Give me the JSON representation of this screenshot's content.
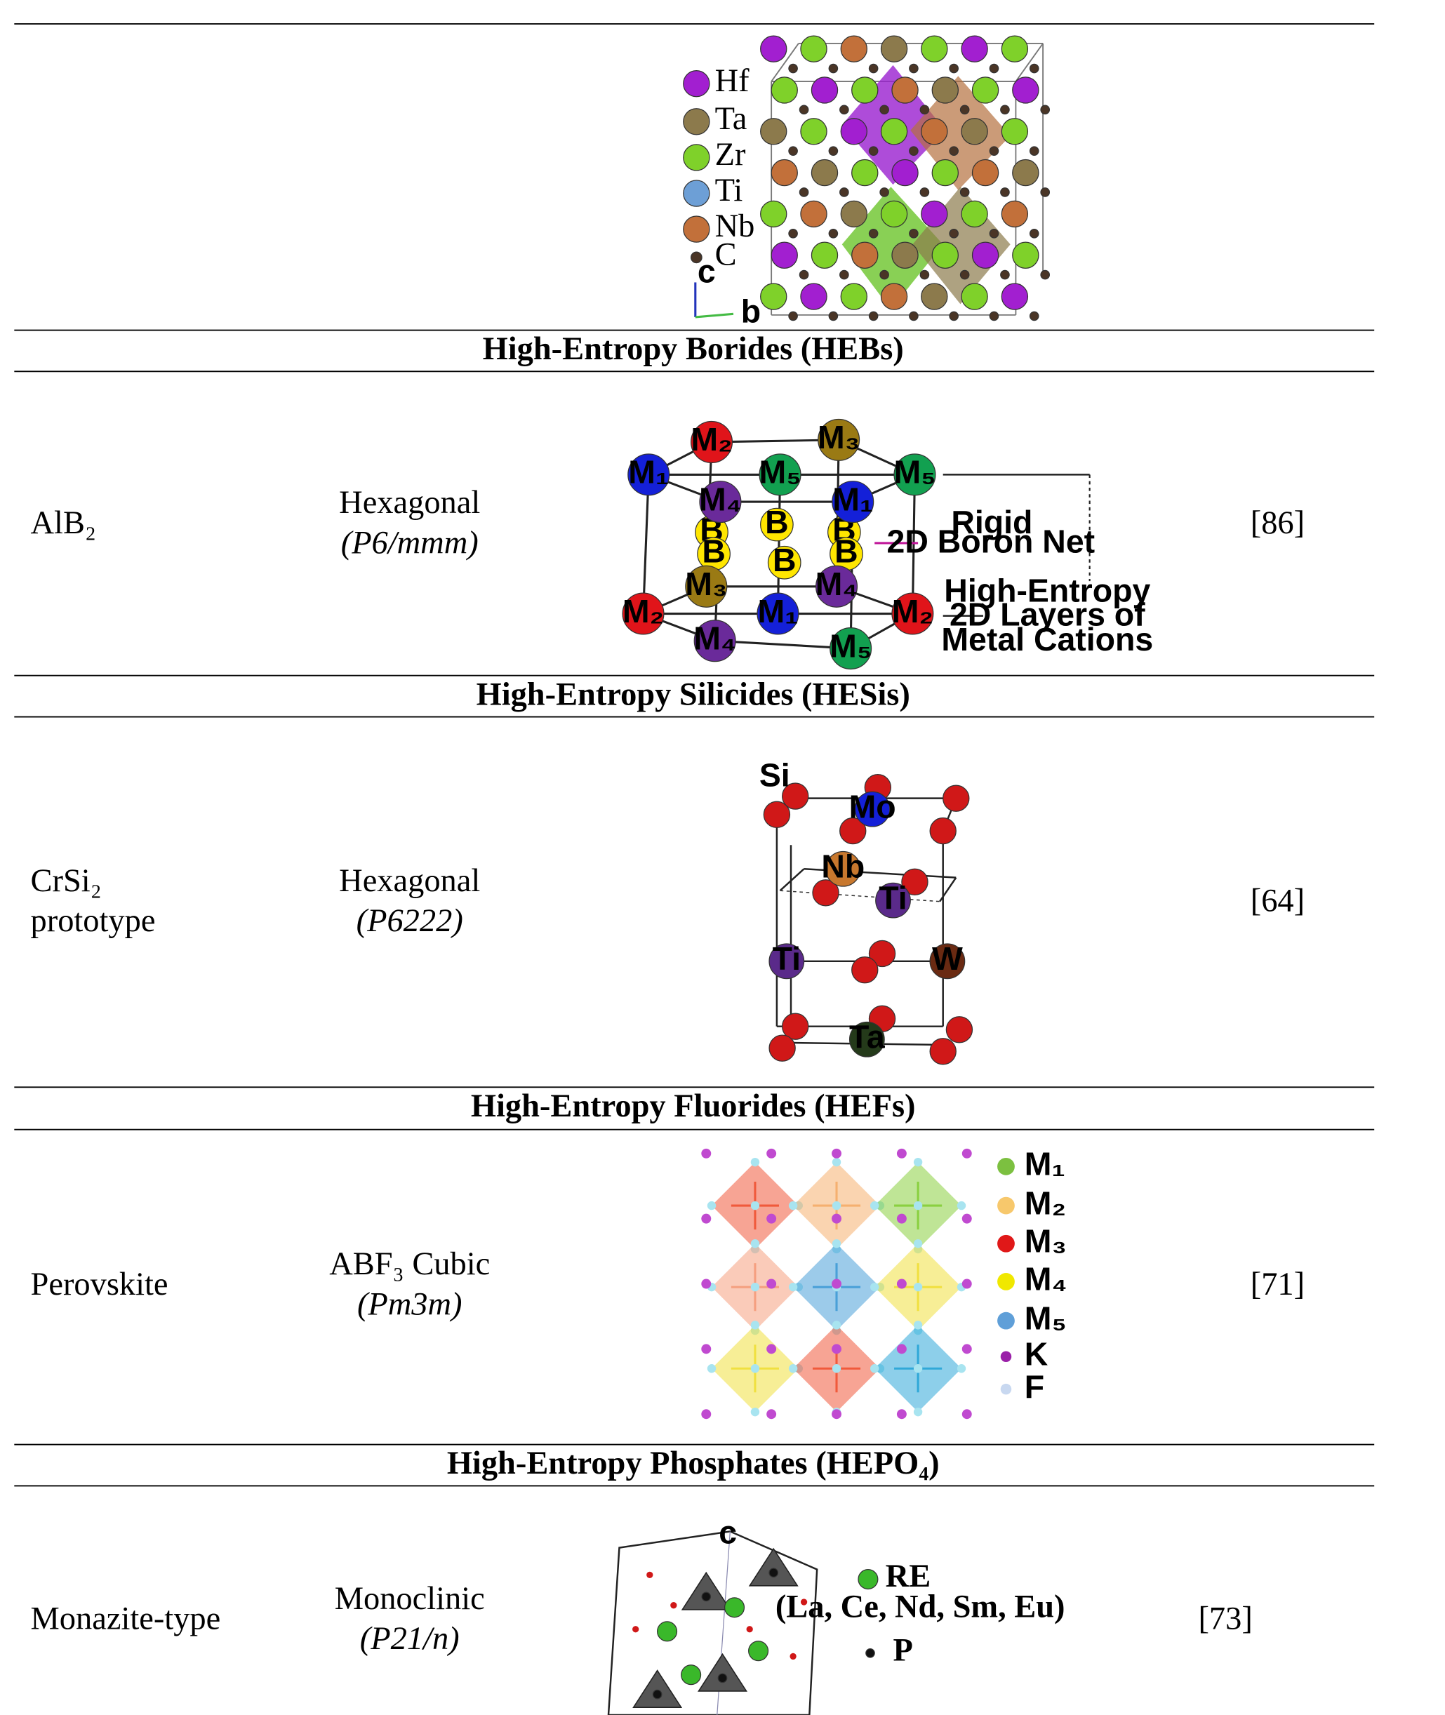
{
  "figure_hec": {
    "legend": [
      "Hf",
      "Ta",
      "Zr",
      "Ti",
      "Nb",
      "C"
    ],
    "axes": [
      "c",
      "b"
    ]
  },
  "sections": [
    {
      "title": "High-Entropy Borides (HEBs)",
      "row": {
        "structure": [
          "AlB₂"
        ],
        "crystal": [
          "Hexagonal",
          "(P6/mmm)"
        ],
        "ref": "[86]"
      },
      "figure": {
        "atoms": [
          "M₂",
          "M₃",
          "M₁",
          "M₅",
          "M₅",
          "M₄",
          "M₁",
          "M₃",
          "M₄",
          "M₂",
          "M₁",
          "M₂",
          "M₄",
          "M₅"
        ],
        "boron": [
          "B",
          "B",
          "B",
          "B",
          "B",
          "B"
        ],
        "notes": [
          "Rigid",
          "2D Boron Net",
          "High-Entropy",
          "2D Layers of",
          "Metal Cations"
        ]
      }
    },
    {
      "title": "High-Entropy Silicides (HESis)",
      "row": {
        "structure": [
          "CrSi₂",
          "prototype"
        ],
        "crystal": [
          "Hexagonal",
          "(P6222)"
        ],
        "ref": "[64]"
      },
      "figure": {
        "atoms": [
          "Si",
          "Mo",
          "Nb",
          "Ti",
          "Ti",
          "W",
          "Ta"
        ]
      }
    },
    {
      "title": "High-Entropy Fluorides (HEFs)",
      "row": {
        "structure": [
          "Perovskite"
        ],
        "crystal": [
          "ABF₃ Cubic",
          "(Pm3m)"
        ],
        "ref": "[71]"
      },
      "figure": {
        "legend": [
          "M₁",
          "M₂",
          "M₃",
          "M₄",
          "M₅",
          "K",
          "F"
        ]
      }
    },
    {
      "title": "High-Entropy Phosphates (HEPO₄)",
      "row": {
        "structure": [
          "Monazite-type"
        ],
        "crystal": [
          "Monoclinic",
          "(P21/n)"
        ],
        "ref": "[73]"
      },
      "figure": {
        "legend": [
          "RE",
          "(La, Ce, Nd, Sm, Eu)",
          "P"
        ],
        "axis": "c"
      }
    }
  ]
}
